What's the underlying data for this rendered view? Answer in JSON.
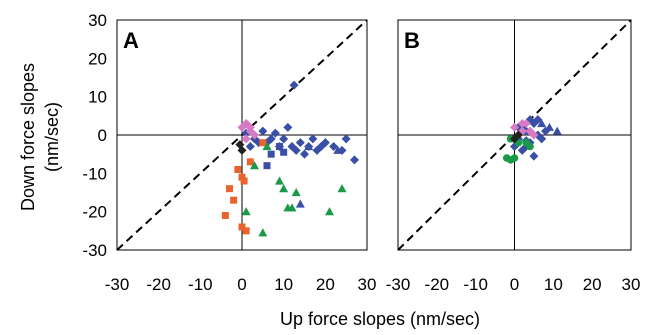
{
  "chart_data": [
    {
      "panel": "A",
      "type": "scatter",
      "xlabel": "Up force slopes (nm/sec)",
      "ylabel": "Down force slopes\n(nm/sec)",
      "xlim": [
        -30,
        30
      ],
      "ylim": [
        -30,
        30
      ],
      "xticks": [
        "-30",
        "-20",
        "-10",
        "0",
        "10",
        "20",
        "30"
      ],
      "yticks": [
        "30",
        "20",
        "10",
        "0",
        "-10",
        "-20",
        "-30"
      ],
      "grid": false,
      "reference_line": "y = x (dashed)",
      "series": [
        {
          "marker": "diamond",
          "color": "#3a4fa6",
          "points": [
            [
              12.5,
              13
            ],
            [
              1,
              0.5
            ],
            [
              3,
              -1
            ],
            [
              5,
              1
            ],
            [
              6,
              -2
            ],
            [
              8,
              0.5
            ],
            [
              10,
              -1
            ],
            [
              11,
              2
            ],
            [
              12,
              -3
            ],
            [
              13,
              -4
            ],
            [
              14,
              -2
            ],
            [
              15,
              -5
            ],
            [
              16,
              -3
            ],
            [
              17,
              -1
            ],
            [
              18,
              -4
            ],
            [
              19,
              -3
            ],
            [
              20,
              -2
            ],
            [
              22,
              -3
            ],
            [
              24,
              -4
            ],
            [
              25,
              -1
            ],
            [
              27,
              -6.5
            ],
            [
              2,
              -3
            ],
            [
              4,
              -2
            ],
            [
              7,
              -1
            ],
            [
              9,
              -3
            ]
          ]
        },
        {
          "marker": "square",
          "color": "#3a4fa6",
          "points": [
            [
              6,
              -8
            ],
            [
              7,
              -5
            ],
            [
              9,
              -3
            ],
            [
              10,
              -4.5
            ]
          ]
        },
        {
          "marker": "triangle",
          "color": "#3a4fa6",
          "points": [
            [
              14,
              -18
            ],
            [
              16,
              -3
            ],
            [
              23,
              -4
            ]
          ]
        },
        {
          "marker": "square",
          "color": "#e8642c",
          "points": [
            [
              -4,
              -21
            ],
            [
              -2,
              -17
            ],
            [
              -3,
              -14
            ],
            [
              -1,
              -9
            ],
            [
              0,
              -11
            ],
            [
              0.5,
              -12
            ],
            [
              2,
              -7
            ],
            [
              0,
              -24
            ],
            [
              5,
              -2
            ],
            [
              1,
              -25
            ]
          ]
        },
        {
          "marker": "triangle",
          "color": "#1a9a48",
          "points": [
            [
              1,
              -20
            ],
            [
              5,
              -25.5
            ],
            [
              3,
              -8
            ],
            [
              6,
              -3
            ],
            [
              9,
              -12
            ],
            [
              10,
              -14
            ],
            [
              12,
              -19
            ],
            [
              13,
              -15
            ],
            [
              21,
              -20
            ],
            [
              24,
              -14
            ],
            [
              11,
              -19
            ]
          ]
        },
        {
          "marker": "diamond",
          "color": "#d67ac6",
          "points": [
            [
              0,
              2
            ],
            [
              1,
              3
            ],
            [
              2,
              1
            ],
            [
              3,
              0
            ],
            [
              1,
              -1
            ],
            [
              2,
              2
            ]
          ]
        },
        {
          "marker": "diamond",
          "color": "#222222",
          "points": [
            [
              -0.5,
              -2.5
            ],
            [
              0,
              -4
            ]
          ]
        }
      ]
    },
    {
      "panel": "B",
      "type": "scatter",
      "xlabel": "Up force slopes (nm/sec)",
      "xlim": [
        -30,
        30
      ],
      "ylim": [
        -30,
        30
      ],
      "xticks": [
        "-30",
        "-20",
        "-10",
        "0",
        "10",
        "20",
        "30"
      ],
      "grid": false,
      "reference_line": "y = x (dashed)",
      "series": [
        {
          "marker": "diamond",
          "color": "#3a4fa6",
          "points": [
            [
              1,
              -1
            ],
            [
              2,
              2
            ],
            [
              3,
              1
            ],
            [
              4,
              -2
            ],
            [
              5,
              3
            ],
            [
              6,
              0
            ],
            [
              7,
              -1
            ],
            [
              5,
              -5.5
            ],
            [
              3,
              -3
            ],
            [
              2,
              -4
            ],
            [
              0,
              -3
            ],
            [
              1,
              2
            ],
            [
              4,
              4
            ],
            [
              6,
              4
            ],
            [
              8,
              1
            ],
            [
              3,
              -1.5
            ]
          ]
        },
        {
          "marker": "triangle",
          "color": "#3a4fa6",
          "points": [
            [
              11,
              1
            ],
            [
              9,
              2
            ],
            [
              7,
              3
            ]
          ]
        },
        {
          "marker": "circle",
          "color": "#1a9a48",
          "points": [
            [
              -2,
              -6
            ],
            [
              -1,
              -6.5
            ],
            [
              0,
              -1
            ],
            [
              1,
              -2
            ],
            [
              4,
              -3
            ],
            [
              -1,
              -1
            ],
            [
              0,
              -6
            ],
            [
              3,
              -2
            ]
          ]
        },
        {
          "marker": "diamond",
          "color": "#d67ac6",
          "points": [
            [
              0,
              2
            ],
            [
              2,
              1
            ],
            [
              3,
              3
            ],
            [
              4,
              1
            ],
            [
              5,
              0
            ],
            [
              2,
              3
            ]
          ]
        },
        {
          "marker": "diamond",
          "color": "#222222",
          "points": [
            [
              0,
              -1
            ],
            [
              1,
              0
            ]
          ]
        }
      ]
    }
  ],
  "panels": {
    "a_label": "A",
    "b_label": "B"
  },
  "axes": {
    "xlabel": "Up force slopes (nm/sec)",
    "ylabel_line1": "Down force slopes",
    "ylabel_line2": "(nm/sec)"
  }
}
